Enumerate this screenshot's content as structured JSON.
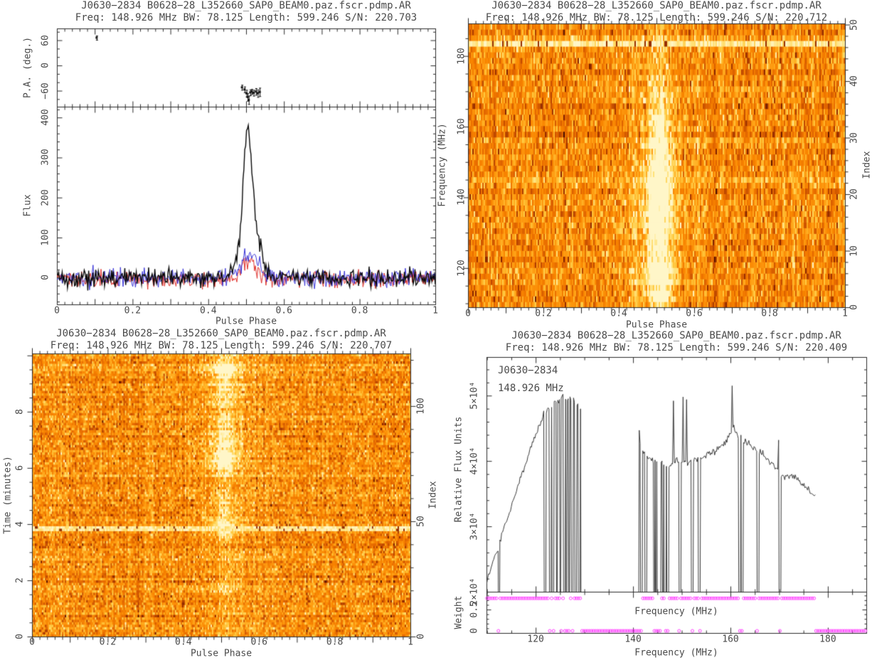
{
  "figure": {
    "bg": "#ffffff",
    "text_color": "#4a4a4a",
    "frame_color": "#2b2b2b"
  },
  "chart_data": [
    {
      "id": "pulse-profile",
      "type": "line",
      "title": "J0630−2834 B0628−28_L352660_SAP0_BEAM0.paz.fscr.pdmp.AR",
      "subtitle": "Freq: 148.926 MHz BW: 78.125 Length: 599.246 S/N: 220.703",
      "xlabel": "Pulse Phase",
      "x_ticks": [
        "0",
        "0.2",
        "0.4",
        "0.6",
        "0.8",
        "1"
      ],
      "x_tick_values": [
        0,
        0.2,
        0.4,
        0.6,
        0.8,
        1
      ],
      "xlim": [
        0,
        1
      ],
      "pa_panel": {
        "ylabel": "P.A. (deg.)",
        "y_ticks": [
          "60",
          "0",
          "−60"
        ],
        "y_tick_values": [
          60,
          0,
          -60
        ],
        "ylim": [
          -98,
          88
        ],
        "points": [
          [
            0.105,
            66,
            5
          ],
          [
            0.489,
            -52,
            6
          ],
          [
            0.496,
            -57,
            7
          ],
          [
            0.501,
            -66,
            8
          ],
          [
            0.504,
            -75,
            9
          ],
          [
            0.507,
            -82,
            10
          ],
          [
            0.511,
            -64,
            7
          ],
          [
            0.515,
            -62,
            6
          ],
          [
            0.52,
            -65,
            7
          ],
          [
            0.526,
            -62,
            8
          ],
          [
            0.531,
            -66,
            9
          ],
          [
            0.536,
            -63,
            10
          ]
        ]
      },
      "flux_panel": {
        "ylabel": "Flux",
        "y_ticks": [
          "400",
          "300",
          "200",
          "100",
          "0"
        ],
        "y_tick_values": [
          400,
          300,
          200,
          100,
          0
        ],
        "ylim": [
          -67,
          427
        ],
        "peak_flux": 385,
        "peak_phase": 0.504,
        "series": [
          {
            "name": "total-intensity",
            "color": "#0a0a0a",
            "baseline": 0,
            "noise_sigma": 11,
            "components": [
              [
                290,
                0.503,
                0.011
              ],
              [
                120,
                0.518,
                0.017
              ],
              [
                40,
                0.478,
                0.012
              ],
              [
                18,
                0.547,
                0.012
              ]
            ]
          },
          {
            "name": "polarization-red",
            "color": "#e0342e",
            "baseline": -4,
            "noise_sigma": 10,
            "components": [
              [
                48,
                0.507,
                0.018
              ]
            ]
          },
          {
            "name": "polarization-blue",
            "color": "#3a35d8",
            "baseline": 0,
            "noise_sigma": 11,
            "components": [
              [
                55,
                0.512,
                0.022
              ]
            ]
          }
        ]
      }
    },
    {
      "id": "phase-frequency-heatmap",
      "type": "heatmap",
      "title": "J0630−2834 B0628−28_L352660_SAP0_BEAM0.paz.fscr.pdmp.AR",
      "subtitle": "Freq: 148.926 MHz BW: 78.125 Length: 599.246 S/N: 220.712",
      "xlabel": "Pulse Phase",
      "x_ticks": [
        "0",
        "0.2",
        "0.4",
        "0.6",
        "0.8",
        "1"
      ],
      "x_tick_values": [
        0,
        0.2,
        0.4,
        0.6,
        0.8,
        1
      ],
      "ylabel": "Frequency (MHz)",
      "y_ticks": [
        "120",
        "140",
        "160",
        "180"
      ],
      "y_tick_values": [
        120,
        140,
        160,
        180
      ],
      "ylim": [
        108.9,
        189.2
      ],
      "y2label": "Index",
      "y2_ticks": [
        "0",
        "10",
        "20",
        "30",
        "40",
        "50"
      ],
      "y2_tick_values": [
        0,
        10,
        20,
        30,
        40,
        50
      ],
      "y2lim": [
        0,
        50.2
      ],
      "n_channels": 50,
      "n_phase_bins": 265,
      "pulse": {
        "phase": 0.507,
        "core_width": 0.02,
        "glow_width": 0.05,
        "amp_profile": [
          [
            110,
            0.55
          ],
          [
            113,
            0.85
          ],
          [
            116,
            0.95
          ],
          [
            120,
            1.0
          ],
          [
            140,
            1.05
          ],
          [
            148,
            1.0
          ],
          [
            152,
            0.85
          ],
          [
            158,
            0.7
          ],
          [
            163,
            0.6
          ],
          [
            167,
            0.5
          ],
          [
            170,
            0.35
          ],
          [
            174,
            0.25
          ],
          [
            180,
            0.18
          ],
          [
            189,
            0.15
          ]
        ]
      },
      "rfi_rows": [
        {
          "freq": 183.2,
          "intensity": "bright"
        },
        {
          "freq": 144.8,
          "intensity": "faint"
        }
      ],
      "colormap": [
        "#470d00",
        "#8a2500",
        "#c24b00",
        "#e66a00",
        "#f98500",
        "#ffa317",
        "#ffc83e",
        "#ffe27a",
        "#fff6c8"
      ]
    },
    {
      "id": "phase-time-heatmap",
      "type": "heatmap",
      "title": "J0630−2834 B0628−28_L352660_SAP0_BEAM0.paz.fscr.pdmp.AR",
      "subtitle": "Freq: 148.926 MHz BW: 78.125 Length: 599.246 S/N: 220.707",
      "xlabel": "Pulse Phase",
      "x_ticks": [
        "0",
        "0.2",
        "0.4",
        "0.6",
        "0.8",
        "1"
      ],
      "x_tick_values": [
        0,
        0.2,
        0.4,
        0.6,
        0.8,
        1
      ],
      "ylabel": "Time (minutes)",
      "y_ticks": [
        "0",
        "2",
        "4",
        "6",
        "8"
      ],
      "y_tick_values": [
        0,
        2,
        4,
        6,
        8
      ],
      "ylim": [
        0,
        10.07
      ],
      "y2label": "Index",
      "y2_ticks": [
        "0",
        "50",
        "100"
      ],
      "y2_tick_values": [
        0,
        50,
        100
      ],
      "y2lim": [
        0,
        122.8
      ],
      "n_subints": 115,
      "n_phase_bins": 265,
      "pulse": {
        "phase": 0.507,
        "core_width": 0.016,
        "glow_width": 0.045,
        "amp_profile": [
          [
            0,
            0.15
          ],
          [
            1.5,
            0.15
          ],
          [
            1.75,
            0.5
          ],
          [
            2.0,
            0.2
          ],
          [
            3.3,
            0.2
          ],
          [
            3.6,
            0.55
          ],
          [
            3.9,
            0.7
          ],
          [
            4.2,
            0.5
          ],
          [
            4.6,
            0.45
          ],
          [
            5.0,
            0.35
          ],
          [
            5.6,
            0.25
          ],
          [
            6.0,
            0.7
          ],
          [
            6.3,
            1.0
          ],
          [
            6.6,
            0.9
          ],
          [
            7.0,
            0.75
          ],
          [
            7.4,
            0.6
          ],
          [
            7.7,
            0.4
          ],
          [
            8.1,
            0.45
          ],
          [
            8.5,
            0.55
          ],
          [
            8.9,
            0.6
          ],
          [
            9.2,
            0.8
          ],
          [
            9.45,
            1.0
          ],
          [
            9.6,
            0.9
          ],
          [
            9.8,
            0.5
          ],
          [
            10.07,
            0.4
          ]
        ]
      },
      "rfi_rows": [
        {
          "time": 3.85,
          "intensity": "bright"
        }
      ],
      "colormap": [
        "#470d00",
        "#8a2500",
        "#c24b00",
        "#e66a00",
        "#f98500",
        "#ffa317",
        "#ffc83e",
        "#ffe27a",
        "#fff6c8"
      ]
    },
    {
      "id": "bandpass-spectrum",
      "type": "line",
      "title": "J0630−2834 B0628−28_L352660_SAP0_BEAM0.paz.fscr.pdmp.AR",
      "subtitle": "Freq: 148.926 MHz BW: 78.125 Length: 599.246 S/N: 220.409",
      "annotation_source": "J0630−2834",
      "annotation_freq": "148.926 MHz",
      "ylabel": "Relative Flux Units",
      "y_ticks": [
        "5×10⁴",
        "4×10⁴",
        "3×10⁴",
        "2×10⁴"
      ],
      "y_tick_values": [
        5,
        4,
        3,
        2
      ],
      "y_unit": "1e4",
      "ylim": [
        2,
        5.59
      ],
      "xlabel": "Frequency (MHz)",
      "xlabel_inner": "Frequency (MHz)",
      "x_ticks": [
        "120",
        "140",
        "160",
        "180"
      ],
      "x_tick_values": [
        120,
        140,
        160,
        180
      ],
      "xlim": [
        109.9,
        187.9
      ],
      "line_color": "#3a3a3a",
      "envelope": [
        [
          109.9,
          2.12
        ],
        [
          111,
          2.42
        ],
        [
          112,
          2.62
        ],
        [
          113,
          2.86
        ],
        [
          114,
          3.08
        ],
        [
          115,
          3.3
        ],
        [
          116,
          3.52
        ],
        [
          117,
          3.76
        ],
        [
          118,
          3.98
        ],
        [
          119,
          4.2
        ],
        [
          120,
          4.38
        ],
        [
          121,
          4.58
        ],
        [
          121.6,
          4.7
        ],
        [
          122.4,
          4.78
        ],
        [
          123.2,
          4.82
        ],
        [
          124,
          4.88
        ],
        [
          124.8,
          4.94
        ],
        [
          125.6,
          5.0
        ],
        [
          126.4,
          4.92
        ],
        [
          127.2,
          4.98
        ],
        [
          128,
          4.9
        ],
        [
          128.8,
          4.82
        ],
        [
          129.5,
          4.76
        ],
        [
          141.3,
          4.28
        ],
        [
          142,
          4.15
        ],
        [
          143,
          4.06
        ],
        [
          144,
          4.0
        ],
        [
          145,
          3.97
        ],
        [
          146,
          3.95
        ],
        [
          147,
          3.93
        ],
        [
          148,
          3.96
        ],
        [
          149,
          4.0
        ],
        [
          150,
          3.99
        ],
        [
          151,
          3.97
        ],
        [
          152,
          4.0
        ],
        [
          153,
          4.01
        ],
        [
          154,
          4.04
        ],
        [
          155,
          4.08
        ],
        [
          156,
          4.12
        ],
        [
          157,
          4.16
        ],
        [
          158,
          4.22
        ],
        [
          159,
          4.3
        ],
        [
          160,
          4.42
        ],
        [
          160.7,
          4.5
        ],
        [
          161.5,
          4.38
        ],
        [
          162.5,
          4.32
        ],
        [
          163.5,
          4.27
        ],
        [
          164.5,
          4.22
        ],
        [
          165.5,
          4.17
        ],
        [
          166.5,
          4.1
        ],
        [
          167.5,
          4.03
        ],
        [
          168.5,
          3.96
        ],
        [
          169.5,
          3.88
        ],
        [
          170.5,
          3.78
        ],
        [
          171.5,
          3.76
        ],
        [
          172.5,
          3.8
        ],
        [
          173.5,
          3.73
        ],
        [
          174.5,
          3.67
        ],
        [
          175.5,
          3.6
        ],
        [
          176.5,
          3.52
        ],
        [
          177.4,
          3.44
        ]
      ],
      "spikes": [
        [
          141.35,
          4.47
        ],
        [
          148.35,
          4.92
        ],
        [
          150.35,
          4.98
        ],
        [
          150.9,
          4.94
        ],
        [
          160.35,
          5.15
        ],
        [
          169.95,
          4.32
        ]
      ],
      "notches": [
        [
          112.45,
          0.25
        ],
        [
          121.9,
          0.3
        ],
        [
          123.0,
          0.25
        ],
        [
          123.55,
          0.3
        ],
        [
          124.3,
          0.25
        ],
        [
          125.1,
          0.3
        ],
        [
          125.9,
          0.25
        ],
        [
          126.35,
          0.3
        ],
        [
          126.9,
          0.25
        ],
        [
          127.5,
          0.3
        ],
        [
          128.2,
          0.25
        ],
        [
          128.9,
          0.3
        ],
        [
          129.4,
          0.3
        ],
        [
          141.7,
          0.3
        ],
        [
          142.6,
          0.25
        ],
        [
          144.3,
          0.3
        ],
        [
          144.7,
          0.25
        ],
        [
          145.1,
          0.3
        ],
        [
          145.5,
          0.25
        ],
        [
          146.1,
          0.3
        ],
        [
          146.6,
          0.25
        ],
        [
          147.1,
          0.25
        ],
        [
          149.6,
          0.3
        ],
        [
          152.2,
          0.35
        ],
        [
          153.6,
          0.3
        ],
        [
          161.9,
          0.4
        ],
        [
          162.4,
          0.3
        ],
        [
          165.6,
          0.35
        ],
        [
          170.15,
          0.3
        ]
      ],
      "zero_ranges": [
        [
          129.55,
          141.25
        ],
        [
          177.5,
          187.9
        ]
      ],
      "weight_panel": {
        "ylabel": "Weight",
        "y_ticks": [
          "0.5",
          "0"
        ],
        "y_tick_values": [
          0.5,
          0
        ],
        "ylim": [
          0,
          0.88
        ],
        "on_value": 0.74,
        "off_value": 0,
        "channel_step_mhz": 0.3906,
        "marker_color": "#ff42ff"
      }
    }
  ]
}
